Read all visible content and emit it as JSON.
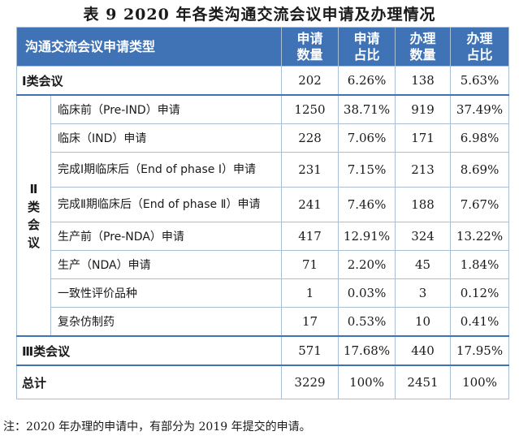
{
  "title": "表 9   2020 年各类沟通交流会议申请及办理情况",
  "header": {
    "type": "沟通交流会议申请类型",
    "apply_count": "申请\n数量",
    "apply_ratio": "申请\n占比",
    "handle_count": "办理\n数量",
    "handle_ratio": "办理\n占比"
  },
  "rows": {
    "class1": {
      "label": "Ⅰ类会议",
      "apply": "202",
      "apply_ratio": "6.26%",
      "handle": "138",
      "handle_ratio": "5.63%"
    },
    "class2_label_chars": [
      "Ⅱ",
      "类",
      "会",
      "议"
    ],
    "class2": [
      {
        "label": "临床前（Pre-IND）申请",
        "apply": "1250",
        "apply_ratio": "38.71%",
        "handle": "919",
        "handle_ratio": "37.49%"
      },
      {
        "label": "临床（IND）申请",
        "apply": "228",
        "apply_ratio": "7.06%",
        "handle": "171",
        "handle_ratio": "6.98%"
      },
      {
        "label": "完成Ⅰ期临床后（End of phase Ⅰ）申请",
        "apply": "231",
        "apply_ratio": "7.15%",
        "handle": "213",
        "handle_ratio": "8.69%"
      },
      {
        "label": "完成Ⅱ期临床后（End of phase Ⅱ）申请",
        "apply": "241",
        "apply_ratio": "7.46%",
        "handle": "188",
        "handle_ratio": "7.67%"
      },
      {
        "label": "生产前（Pre-NDA）申请",
        "apply": "417",
        "apply_ratio": "12.91%",
        "handle": "324",
        "handle_ratio": "13.22%"
      },
      {
        "label": "生产（NDA）申请",
        "apply": "71",
        "apply_ratio": "2.20%",
        "handle": "45",
        "handle_ratio": "1.84%"
      },
      {
        "label": "一致性评价品种",
        "apply": "1",
        "apply_ratio": "0.03%",
        "handle": "3",
        "handle_ratio": "0.12%"
      },
      {
        "label": "复杂仿制药",
        "apply": "17",
        "apply_ratio": "0.53%",
        "handle": "10",
        "handle_ratio": "0.41%"
      }
    ],
    "class3": {
      "label": "Ⅲ类会议",
      "apply": "571",
      "apply_ratio": "17.68%",
      "handle": "440",
      "handle_ratio": "17.95%"
    },
    "total": {
      "label": "总计",
      "apply": "3229",
      "apply_ratio": "100%",
      "handle": "2451",
      "handle_ratio": "100%"
    }
  },
  "note": "注：2020 年办理的申请中，有部分为 2019 年提交的申请。",
  "colors": {
    "header_bg": "#3f73b5",
    "border": "#a9bfd6"
  }
}
